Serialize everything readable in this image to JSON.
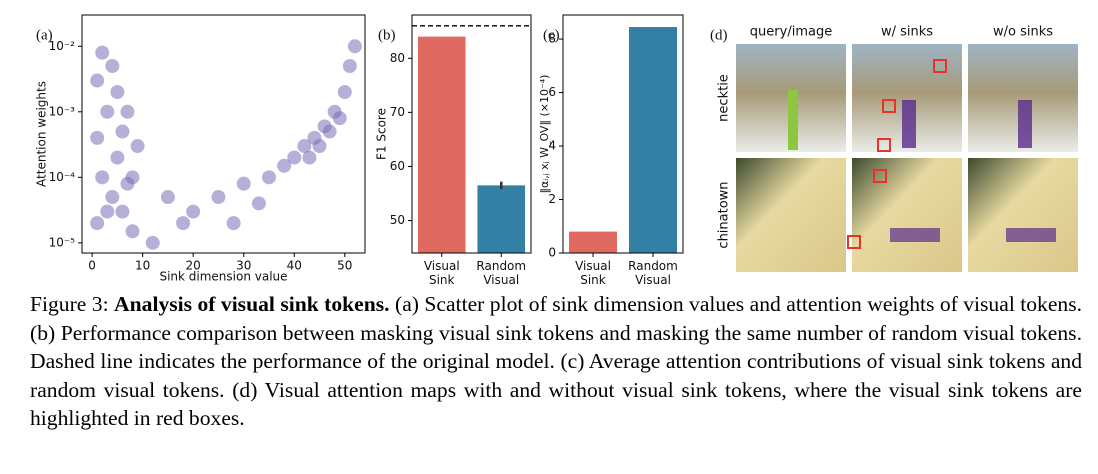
{
  "chart_data": [
    {
      "type": "scatter",
      "label": "(a)",
      "xlabel": "Sink dimension value",
      "ylabel": "Attention weights",
      "color": "#7a70b8",
      "log_y": true,
      "x": [
        1,
        2,
        3,
        4,
        5,
        6,
        7,
        8,
        1,
        3,
        5,
        8,
        2,
        6,
        9,
        4,
        7,
        1,
        40,
        42,
        44,
        46,
        48,
        50,
        51,
        52,
        45,
        49,
        43,
        47,
        15,
        20,
        25,
        30,
        35,
        12,
        18,
        28,
        33,
        38
      ],
      "y": [
        2e-05,
        0.0001,
        0.001,
        0.005,
        0.0002,
        3e-05,
        0.001,
        1.5e-05,
        0.003,
        3e-05,
        0.002,
        0.0001,
        0.008,
        0.0005,
        0.0003,
        5e-05,
        8e-05,
        0.0004,
        0.0002,
        0.0003,
        0.0004,
        0.0006,
        0.001,
        0.002,
        0.005,
        0.01,
        0.0003,
        0.0008,
        0.0002,
        0.0005,
        5e-05,
        3e-05,
        5e-05,
        8e-05,
        0.0001,
        1e-05,
        2e-05,
        2e-05,
        4e-05,
        0.00015
      ],
      "xlim": [
        -2,
        54
      ],
      "xticks": [
        0,
        10,
        20,
        30,
        40,
        50
      ],
      "ylim": [
        7e-06,
        0.03
      ],
      "yticks": [
        {
          "value": 1e-05,
          "label": "10⁻⁵"
        },
        {
          "value": 0.0001,
          "label": "10⁻⁴"
        },
        {
          "value": 0.001,
          "label": "10⁻³"
        },
        {
          "value": 0.01,
          "label": "10⁻²"
        }
      ]
    },
    {
      "type": "bar",
      "label": "(b)",
      "ylabel": "F1 Score",
      "categories": [
        "Visual Sink",
        "Random Visual"
      ],
      "values": [
        84,
        56.5
      ],
      "errors": [
        null,
        0.7
      ],
      "colors": [
        "#e06a62",
        "#347fa4"
      ],
      "reference_line": 86,
      "ylim": [
        44,
        88
      ],
      "yticks": [
        50,
        60,
        70,
        80
      ]
    },
    {
      "type": "bar",
      "label": "(c)",
      "ylabel": "‖αᵢ,ⱼ xⱼ W_OV‖ (×10⁻⁴)",
      "categories": [
        "Visual Sink",
        "Random Visual"
      ],
      "values": [
        0.8,
        8.45
      ],
      "colors": [
        "#e06a62",
        "#347fa4"
      ],
      "ylim": [
        0,
        8.9
      ],
      "yticks": [
        0,
        2,
        4,
        6,
        8
      ]
    }
  ],
  "images": {
    "label": "(d)",
    "columns": [
      "query/image",
      "w/ sinks",
      "w/o sinks"
    ],
    "rows": [
      "necktie",
      "chinatown"
    ]
  },
  "caption": {
    "label": "Figure 3:",
    "title": "Analysis of visual sink tokens.",
    "text": "(a) Scatter plot of sink dimension values and attention weights of visual tokens. (b) Performance comparison between masking visual sink tokens and masking the same number of random visual tokens. Dashed line indicates the performance of the original model. (c) Average attention contributions of visual sink tokens and random visual tokens. (d) Visual attention maps with and without visual sink tokens, where the visual sink tokens are highlighted in red boxes."
  }
}
